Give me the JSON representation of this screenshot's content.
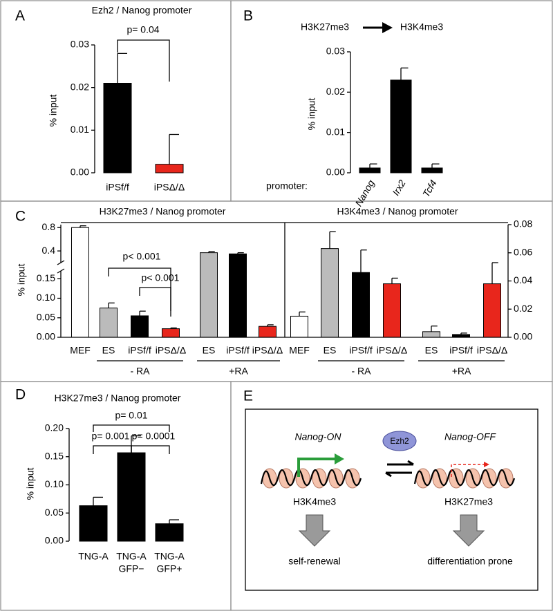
{
  "chart_data": [
    {
      "type": "bar",
      "panel": "A",
      "title": "Ezh2 / Nanog promoter",
      "ylabel": "% input",
      "categories": [
        "iPSf/f",
        "iPSΔ/Δ"
      ],
      "values": [
        0.021,
        0.002
      ],
      "errors": [
        0.007,
        0.007
      ],
      "colors": [
        "#000000",
        "#e8261c"
      ],
      "ylim": [
        0,
        0.03
      ],
      "yticks": [
        {
          "value": 0,
          "label": "0.00"
        },
        0.01,
        0.02,
        0.03
      ],
      "annotations": [
        "p= 0.04"
      ]
    },
    {
      "type": "bar",
      "panel": "B",
      "title_parts": [
        "H3K27me3",
        "H3K4me3"
      ],
      "ylabel": "% input",
      "xlabel": "promoter:",
      "categories": [
        "Nanog",
        "Irx2",
        "Tcf4"
      ],
      "values": [
        0.0012,
        0.023,
        0.0012
      ],
      "errors": [
        0.001,
        0.003,
        0.001
      ],
      "colors": [
        "#000000",
        "#000000",
        "#000000"
      ],
      "ylim": [
        0,
        0.03
      ],
      "yticks": [
        {
          "value": 0,
          "label": "0.00"
        },
        0.01,
        0.02,
        0.03
      ]
    },
    {
      "type": "bar",
      "panel": "C",
      "title": "H3K27me3 / Nanog promoter",
      "ylabel": "% input",
      "categories": [
        "MEF",
        "ES",
        "iPSf/f",
        "iPSΔ/Δ",
        "ES",
        "iPSf/f",
        "iPSΔ/Δ"
      ],
      "values": [
        0.8,
        0.075,
        0.055,
        0.022,
        0.37,
        0.35,
        0.028
      ],
      "errors": [
        0.03,
        0.013,
        0.012,
        0.002,
        0.02,
        0.02,
        0.004
      ],
      "colors": [
        "#ffffff",
        "#bbbbbb",
        "#000000",
        "#e8261c",
        "#bbbbbb",
        "#000000",
        "#e8261c"
      ],
      "ylim": [
        0,
        0.85
      ],
      "ybreak": [
        0.17,
        0.2
      ],
      "yticks": [
        {
          "value": 0,
          "label": "0.00"
        },
        0.05,
        {
          "value": 0.1,
          "label": "0.10"
        },
        0.15,
        0.4,
        0.8
      ],
      "groups": [
        "- RA",
        "+RA"
      ],
      "annotations": [
        "p< 0.001",
        "p< 0.001"
      ]
    },
    {
      "type": "bar",
      "title": "H3K4me3 / Nanog promoter",
      "categories": [
        "MEF",
        "ES",
        "iPSf/f",
        "iPSΔ/Δ",
        "ES",
        "iPSf/f",
        "iPSΔ/Δ"
      ],
      "values": [
        0.015,
        0.063,
        0.046,
        0.038,
        0.004,
        0.002,
        0.038
      ],
      "errors": [
        0.003,
        0.012,
        0.016,
        0.004,
        0.004,
        0.001,
        0.015
      ],
      "colors": [
        "#ffffff",
        "#bbbbbb",
        "#000000",
        "#e8261c",
        "#bbbbbb",
        "#000000",
        "#e8261c"
      ],
      "y2lim": [
        0,
        0.08
      ],
      "y2ticks": [
        {
          "value": 0,
          "label": "0.00"
        },
        0.02,
        0.04,
        0.06,
        0.08
      ],
      "groups": [
        "- RA",
        "+RA"
      ]
    },
    {
      "type": "bar",
      "panel": "D",
      "title": "H3K27me3 / Nanog promoter",
      "ylabel": "% input",
      "categories": [
        [
          "TNG-A"
        ],
        [
          "TNG-A",
          "GFP−"
        ],
        [
          "TNG-A",
          "GFP+"
        ]
      ],
      "values": [
        0.063,
        0.157,
        0.031
      ],
      "errors": [
        0.015,
        0.03,
        0.007
      ],
      "colors": [
        "#000000",
        "#000000",
        "#000000"
      ],
      "ylim": [
        0,
        0.2
      ],
      "yticks": [
        {
          "value": 0,
          "label": "0.00"
        },
        0.05,
        {
          "value": 0.1,
          "label": "0.10"
        },
        0.15,
        {
          "value": 0.2,
          "label": "0.20"
        }
      ],
      "annotations": [
        "p= 0.001",
        "p= 0.0001",
        "p= 0.01"
      ]
    }
  ],
  "diagram": {
    "panel": "E",
    "left_title": "Nanog-ON",
    "right_title": "Nanog-OFF",
    "enzyme": "Ezh2",
    "left_mark": "H3K4me3",
    "right_mark": "H3K27me3",
    "left_outcome": "self-renewal",
    "right_outcome": "differentiation prone"
  }
}
